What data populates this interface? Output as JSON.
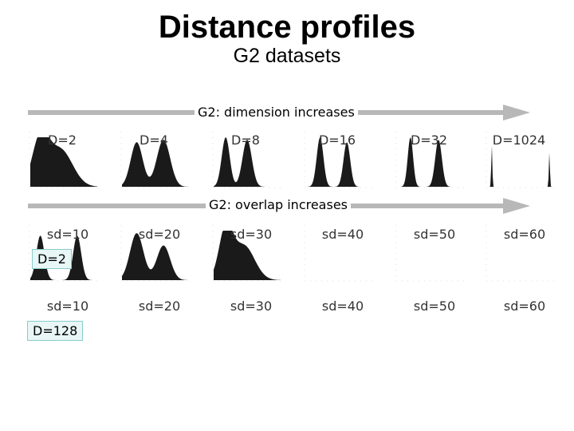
{
  "title": "Distance profiles",
  "subtitle": "G2 datasets",
  "arrow_dimension": "G2: dimension increases",
  "arrow_overlap": "G2: overlap increases",
  "row1_labels": [
    "D=2",
    "D=4",
    "D=8",
    "D=16",
    "D=32",
    "D=1024"
  ],
  "row2_labels": [
    "sd=10",
    "sd=20",
    "sd=30",
    "sd=40",
    "sd=50",
    "sd=60"
  ],
  "row3_labels": [
    "sd=10",
    "sd=20",
    "sd=30",
    "sd=40",
    "sd=50",
    "sd=60"
  ],
  "row2_tag": "D=2",
  "row3_tag": "D=128",
  "colors": {
    "arrow": "#b8b8b8",
    "histogram": "#1a1a1a",
    "tag_bg": "#e8f6f6"
  }
}
